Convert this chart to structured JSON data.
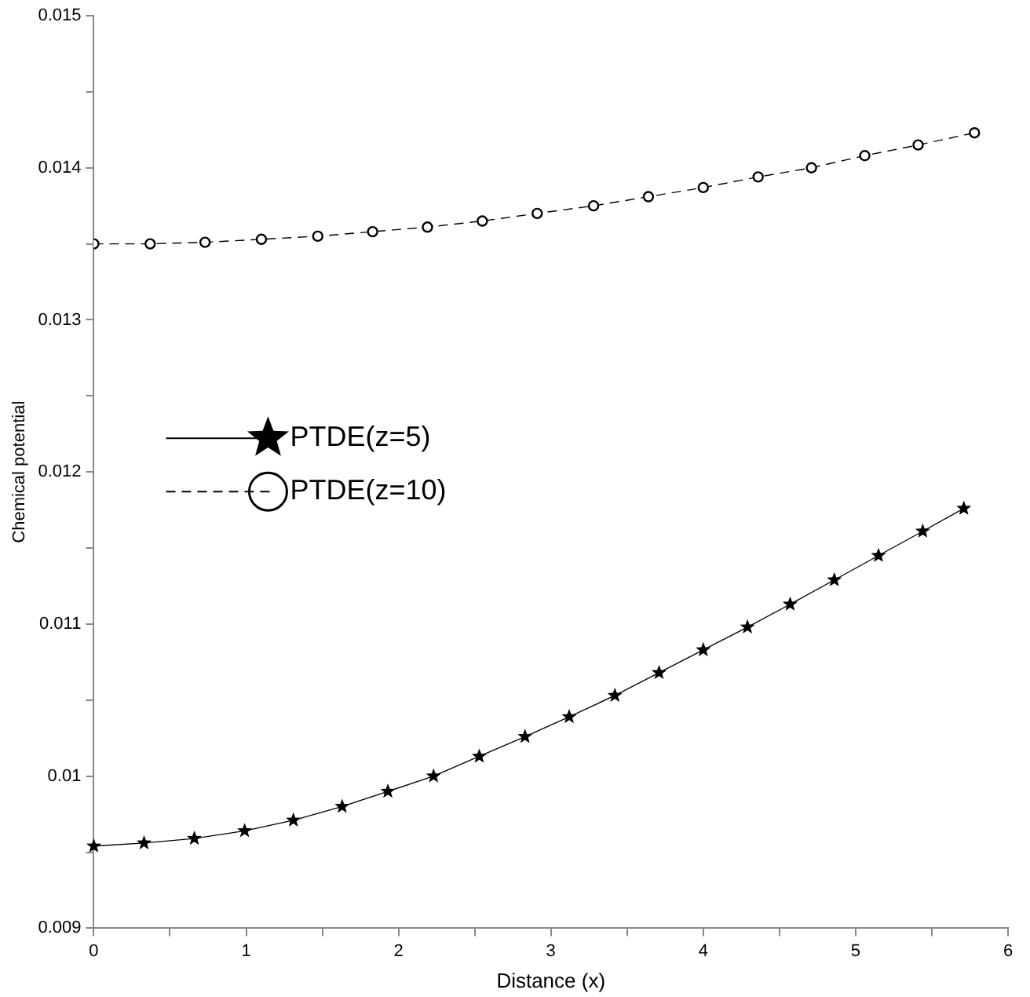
{
  "chart_data": {
    "type": "line",
    "xlabel": "Distance (x)",
    "ylabel": "Chemical potential",
    "xlim": [
      0,
      6
    ],
    "ylim": [
      0.009,
      0.015
    ],
    "xticks": [
      0,
      {
        "value": 0.5,
        "label": null
      },
      1,
      {
        "value": 1.5,
        "label": null
      },
      2,
      {
        "value": 2.5,
        "label": null
      },
      3,
      {
        "value": 3.5,
        "label": null
      },
      4,
      {
        "value": 4.5,
        "label": null
      },
      5,
      {
        "value": 5.5,
        "label": null
      },
      6
    ],
    "yticks": [
      0.009,
      {
        "value": 0.0095,
        "label": null
      },
      0.01,
      {
        "value": 0.0105,
        "label": null
      },
      0.011,
      {
        "value": 0.0115,
        "label": null
      },
      0.012,
      {
        "value": 0.0125,
        "label": null
      },
      0.013,
      {
        "value": 0.0135,
        "label": null
      },
      0.014,
      {
        "value": 0.0145,
        "label": null
      },
      0.015
    ],
    "grid": false,
    "legend": "center left",
    "series": [
      {
        "name": "PTDE(z=5)",
        "color": "#000000",
        "marker": "star",
        "line_style": "solid",
        "x": [
          0,
          0.33,
          0.66,
          0.99,
          1.31,
          1.63,
          1.93,
          2.23,
          2.53,
          2.83,
          3.12,
          3.42,
          3.71,
          4.0,
          4.29,
          4.57,
          4.86,
          5.15,
          5.44,
          5.71
        ],
        "values": [
          0.00954,
          0.00956,
          0.00959,
          0.00964,
          0.00971,
          0.0098,
          0.0099,
          0.01,
          0.01013,
          0.01026,
          0.01039,
          0.01053,
          0.01068,
          0.01083,
          0.01098,
          0.01113,
          0.01129,
          0.01145,
          0.01161,
          0.01176
        ]
      },
      {
        "name": "PTDE(z=10)",
        "color": "#000000",
        "marker": "circle",
        "line_style": "dashed",
        "x": [
          0,
          0.37,
          0.73,
          1.1,
          1.47,
          1.83,
          2.19,
          2.55,
          2.91,
          3.28,
          3.64,
          4.0,
          4.36,
          4.71,
          5.06,
          5.41,
          5.78
        ],
        "values": [
          0.0135,
          0.0135,
          0.01351,
          0.01353,
          0.01355,
          0.01358,
          0.01361,
          0.01365,
          0.0137,
          0.01375,
          0.01381,
          0.01387,
          0.01394,
          0.014,
          0.01408,
          0.01415,
          0.01423
        ]
      }
    ]
  }
}
